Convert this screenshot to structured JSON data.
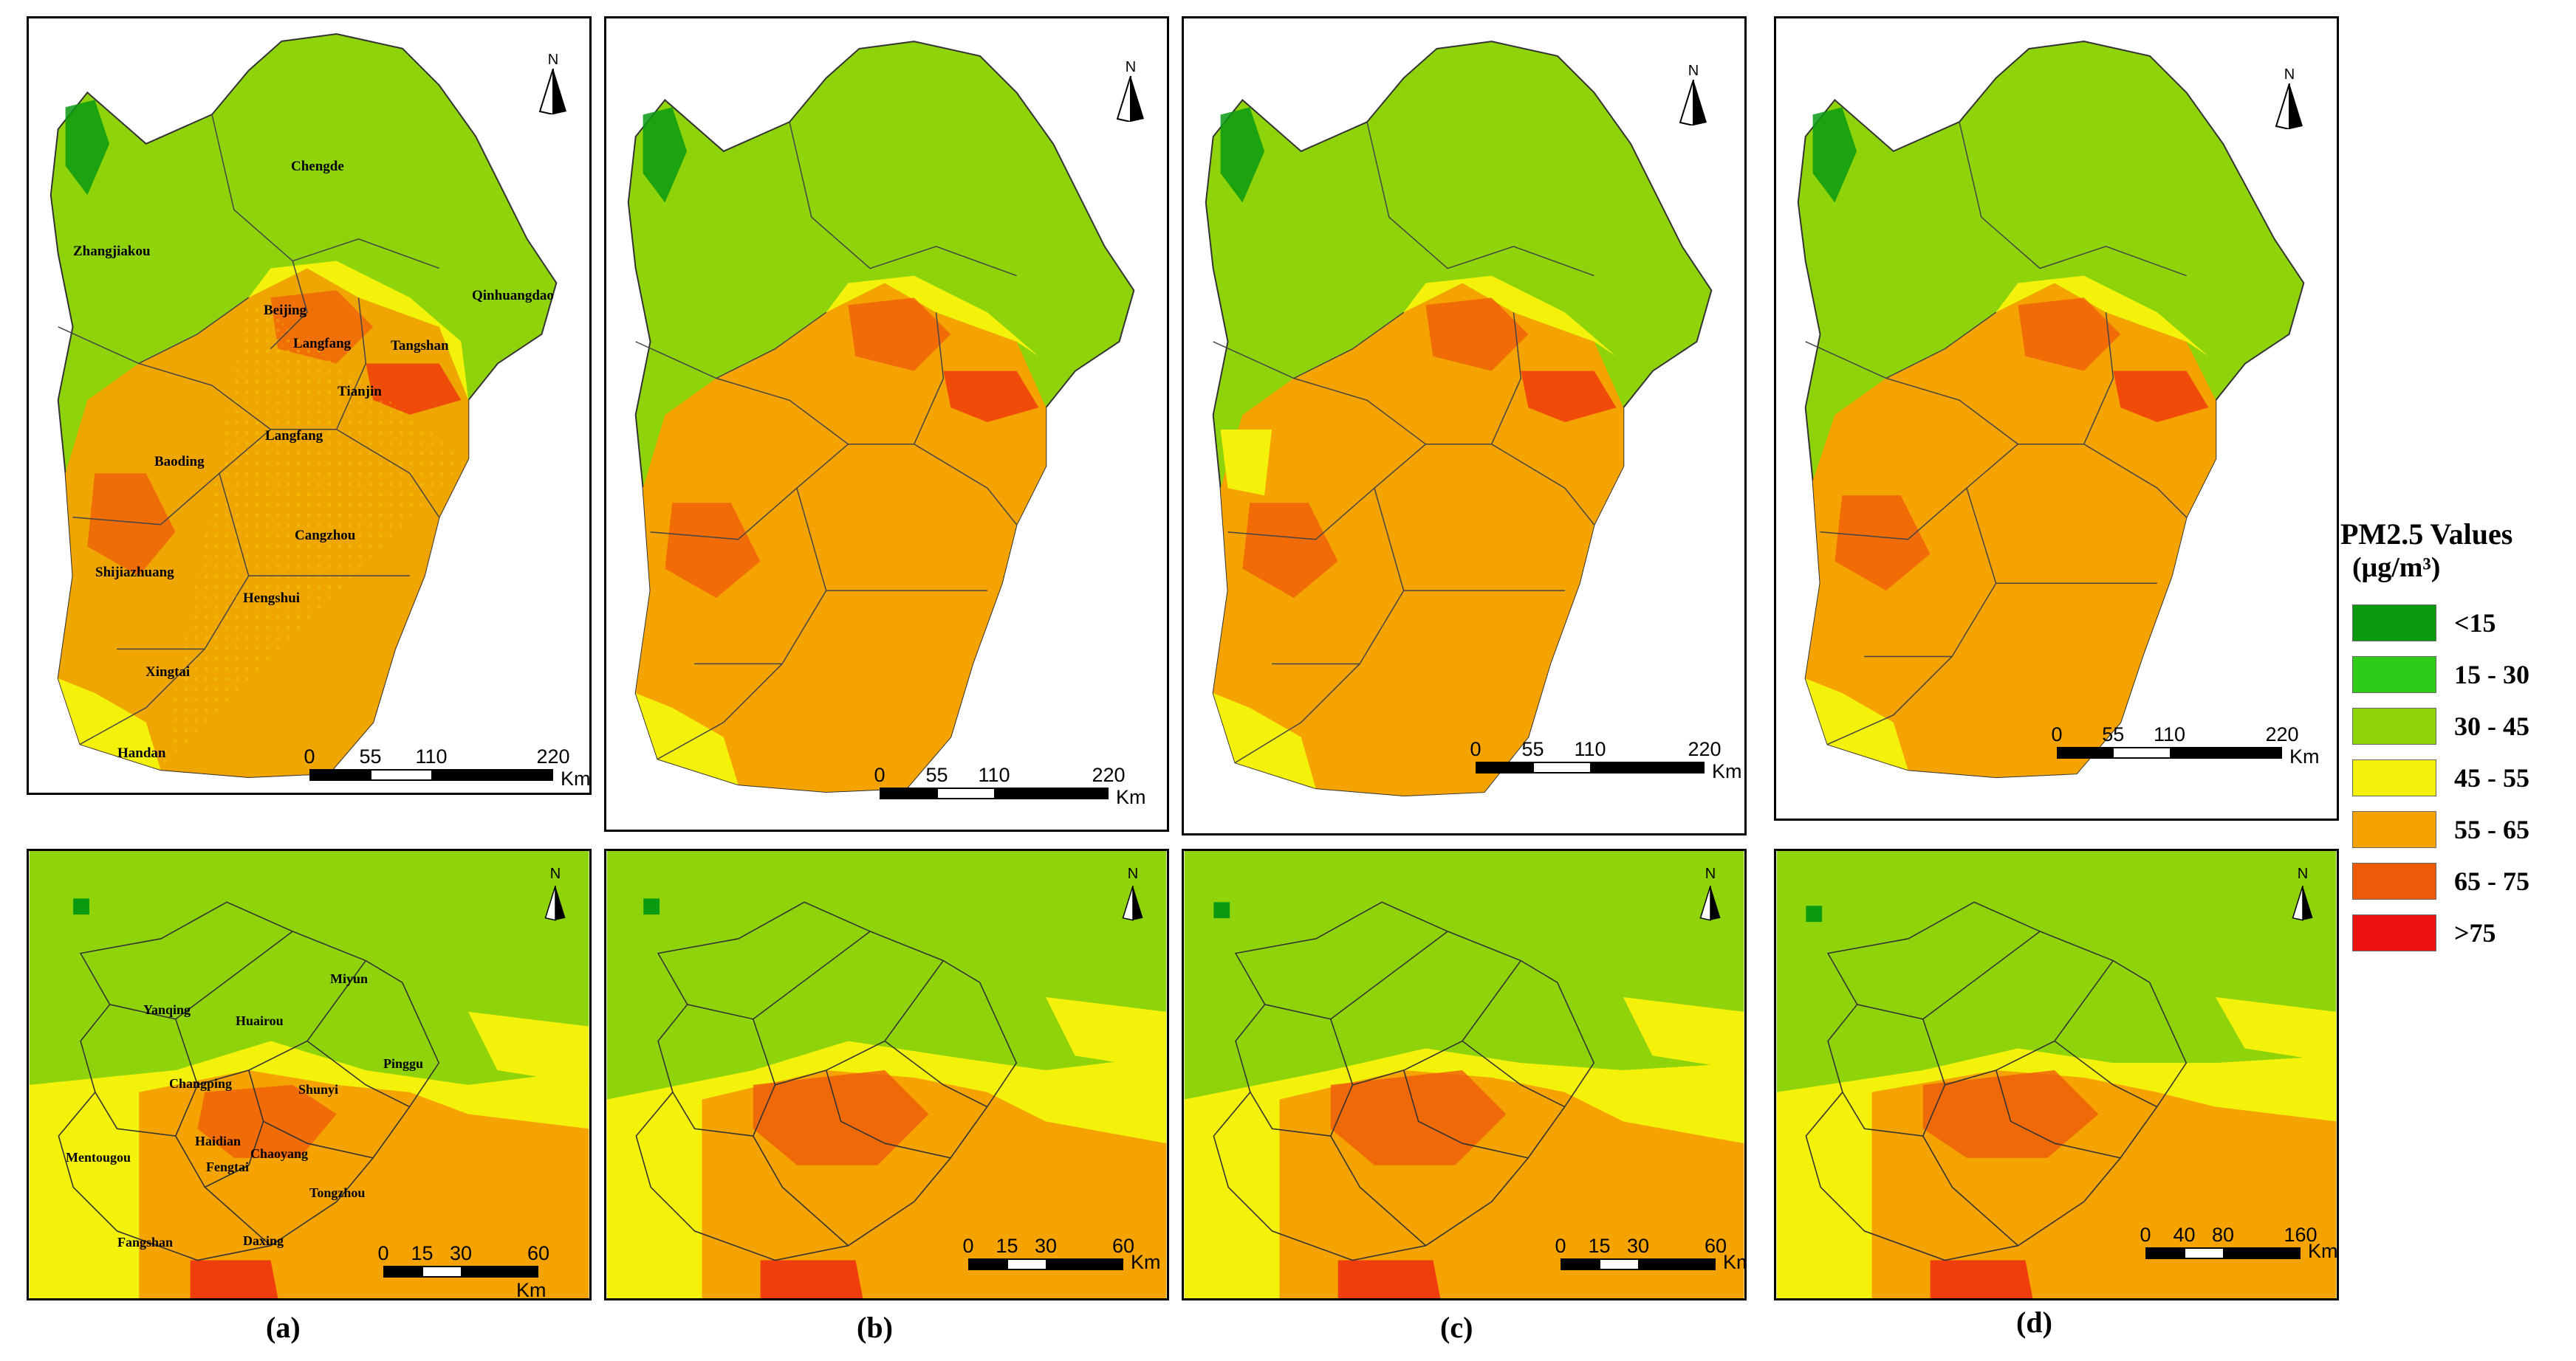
{
  "legend": {
    "title": "PM2.5 Values",
    "unit": "(μg/m³)",
    "classes": [
      {
        "label": "<15",
        "color": "#0a9a12"
      },
      {
        "label": "15 - 30",
        "color": "#2ecb1a"
      },
      {
        "label": "30 - 45",
        "color": "#8fd40a"
      },
      {
        "label": "45 - 55",
        "color": "#f4f20a"
      },
      {
        "label": "55 - 65",
        "color": "#f5a300"
      },
      {
        "label": "65 - 75",
        "color": "#ef5a0a"
      },
      {
        "label": ">75",
        "color": "#ee1111"
      }
    ]
  },
  "north_label": "N",
  "panel_labels": [
    "(a)",
    "(b)",
    "(c)",
    "(d)"
  ],
  "region_scale": {
    "ticks": [
      "0",
      "55",
      "110",
      "220"
    ],
    "unit": "Km"
  },
  "beijing_scale_abc": {
    "ticks": [
      "0",
      "15",
      "30",
      "60"
    ],
    "unit": "Km"
  },
  "beijing_scale_d": {
    "ticks": [
      "0",
      "40",
      "80",
      "160"
    ],
    "unit": "Km"
  },
  "cities": [
    "Chengde",
    "Zhangjiakou",
    "Qinhuangdao",
    "Beijing",
    "Langfang",
    "Tangshan",
    "Tianjin",
    "Langfang",
    "Baoding",
    "Cangzhou",
    "Shijiazhuang",
    "Hengshui",
    "Xingtai",
    "Handan"
  ],
  "districts": [
    "Miyun",
    "Yanqing",
    "Huairou",
    "Pinggu",
    "Changping",
    "Shunyi",
    "Haidian",
    "Chaoyang",
    "Mentougou",
    "Fengtai",
    "Tongzhou",
    "Fangshan",
    "Daxing"
  ]
}
